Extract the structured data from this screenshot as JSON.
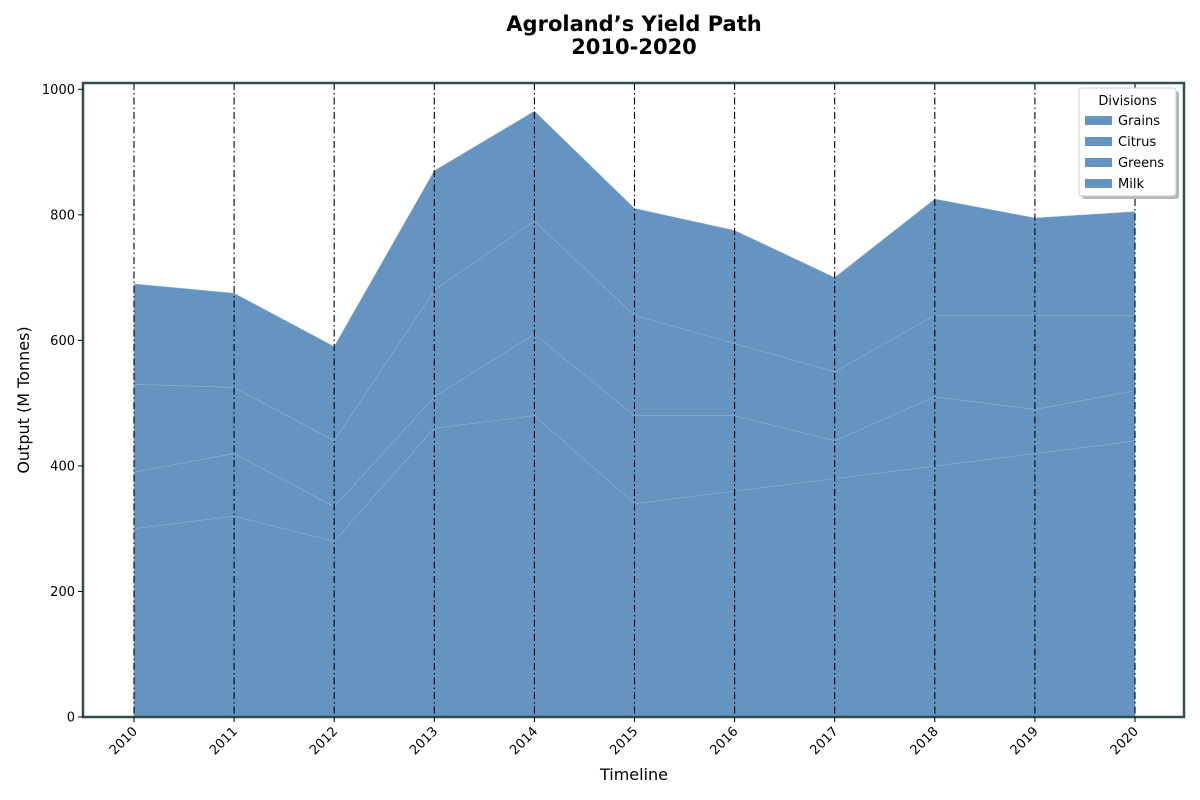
{
  "chart_data": {
    "type": "area",
    "stacked": true,
    "title_line1": "Agroland’s Yield Path",
    "title_line2": "2010-2020",
    "xlabel": "Timeline",
    "ylabel": "Output (M Tonnes)",
    "categories": [
      "2010",
      "2011",
      "2012",
      "2013",
      "2014",
      "2015",
      "2016",
      "2017",
      "2018",
      "2019",
      "2020"
    ],
    "ylim": [
      0,
      1010
    ],
    "yticks": [
      0,
      200,
      400,
      600,
      800,
      1000
    ],
    "grid": "vertical dash-dot lines at each year",
    "legend_title": "Divisions",
    "legend_position": "top-right",
    "series": [
      {
        "name": "Grains",
        "values": [
          300,
          320,
          280,
          460,
          480,
          340,
          360,
          380,
          400,
          420,
          440
        ]
      },
      {
        "name": "Citrus",
        "values": [
          90,
          100,
          55,
          50,
          130,
          140,
          120,
          60,
          110,
          70,
          80
        ]
      },
      {
        "name": "Greens",
        "values": [
          140,
          105,
          105,
          170,
          180,
          160,
          115,
          110,
          130,
          150,
          120
        ]
      },
      {
        "name": "Milk",
        "values": [
          160,
          150,
          150,
          190,
          175,
          170,
          180,
          150,
          185,
          155,
          165
        ]
      }
    ],
    "colors": {
      "fill": "#6594c1",
      "boundary": "#8cb0d4",
      "frame": "#2f4f4f",
      "gridline": "#000000"
    }
  }
}
